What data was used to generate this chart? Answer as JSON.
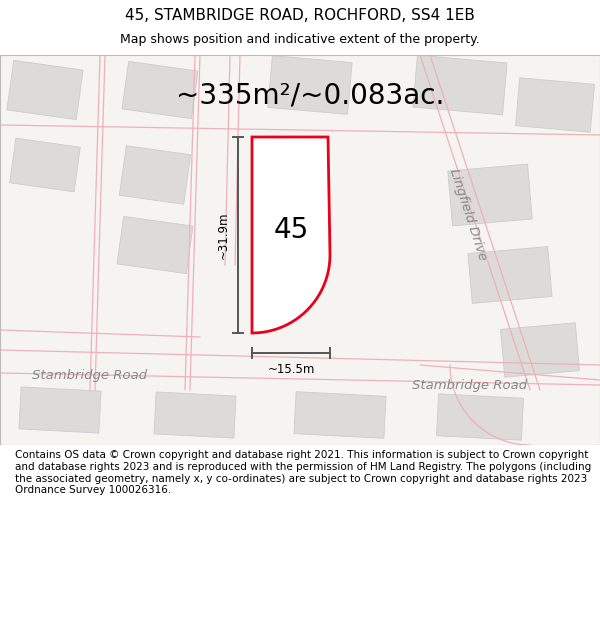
{
  "title": "45, STAMBRIDGE ROAD, ROCHFORD, SS4 1EB",
  "subtitle": "Map shows position and indicative extent of the property.",
  "area_text": "~335m²/~0.083ac.",
  "property_number": "45",
  "dim_width": "~15.5m",
  "dim_height": "~31.9m",
  "map_bg": "#f5f4f1",
  "road_label_left": "Stambridge Road",
  "road_label_right": "Stambridge Road",
  "side_road_label": "Lingfield Drive",
  "footer_text": "Contains OS data © Crown copyright and database right 2021. This information is subject to Crown copyright and database rights 2023 and is reproduced with the permission of HM Land Registry. The polygons (including the associated geometry, namely x, y co-ordinates) are subject to Crown copyright and database rights 2023 Ordnance Survey 100026316.",
  "property_fill": "#ffffff",
  "property_edge": "#e8001c",
  "block_fill": "#dddbd7",
  "block_edge_color": "#cccccc",
  "road_line_color": "#f0b0b8",
  "dim_line_color": "#555555",
  "title_fontsize": 11,
  "subtitle_fontsize": 9,
  "area_fontsize": 20,
  "footer_fontsize": 7.5,
  "road_label_color": "#888888",
  "road_label_fontsize": 9.5
}
